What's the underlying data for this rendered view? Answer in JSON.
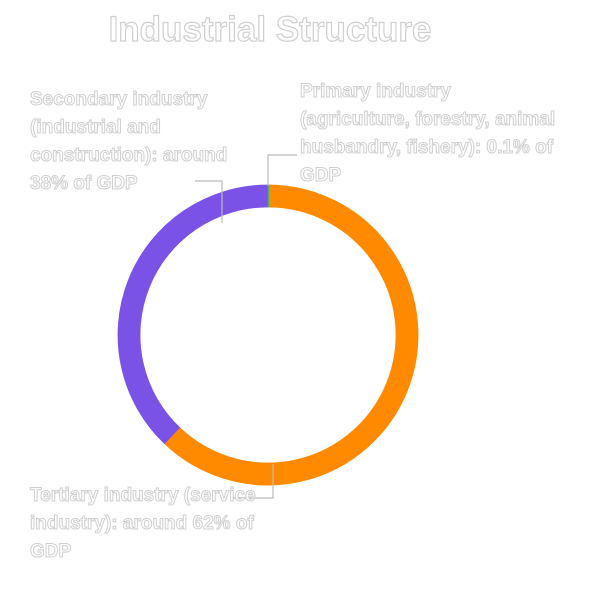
{
  "chart_data": {
    "type": "donut",
    "title": "Industrial Structure",
    "categories": [
      "Primary industry (agriculture, forestry, animal husbandry, fishery): 0.1% of GDP",
      "Tertiary industry (service industry): around 62% of GDP",
      "Secondary industry (industrial and construction): around 38% of GDP"
    ],
    "values": [
      0.1,
      62,
      38
    ],
    "colors": [
      "#3cb371",
      "#ff8a00",
      "#7a52e6"
    ]
  }
}
